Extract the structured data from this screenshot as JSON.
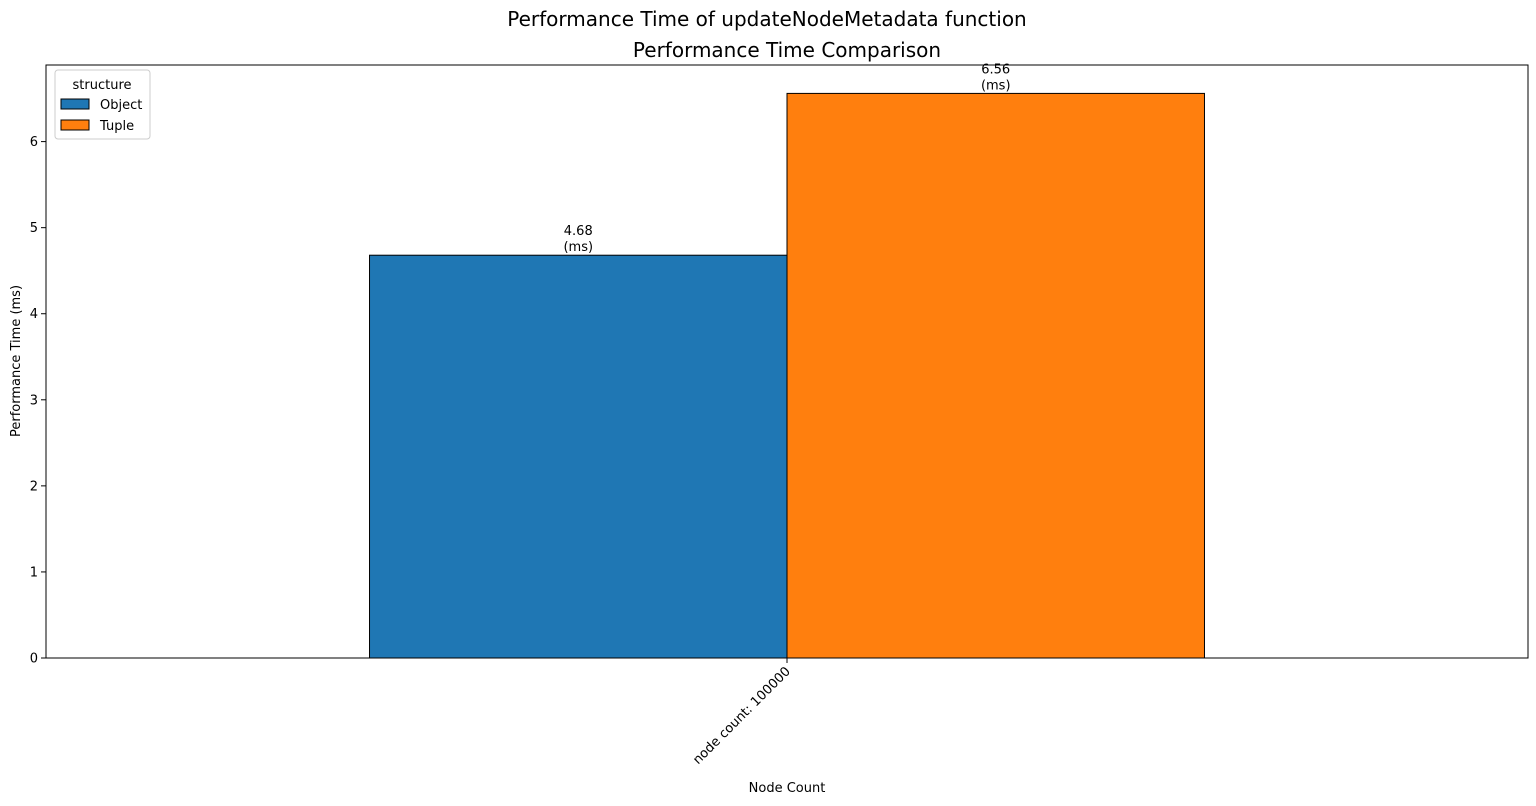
{
  "suptitle": "Performance Time of updateNodeMetadata function",
  "chart_data": {
    "type": "bar",
    "title": "Performance Time Comparison",
    "xlabel": "Node Count",
    "ylabel": "Performance Time (ms)",
    "categories": [
      "node count: 100000"
    ],
    "series": [
      {
        "name": "Object",
        "values": [
          4.68
        ],
        "color": "#1f77b4"
      },
      {
        "name": "Tuple",
        "values": [
          6.56
        ],
        "color": "#ff7f0e"
      }
    ],
    "value_unit_label": "(ms)",
    "ylim": [
      0,
      6.89
    ],
    "yticks": [
      0,
      1,
      2,
      3,
      4,
      5,
      6
    ],
    "grid": false,
    "legend": {
      "title": "structure",
      "placement": "top-left"
    }
  }
}
